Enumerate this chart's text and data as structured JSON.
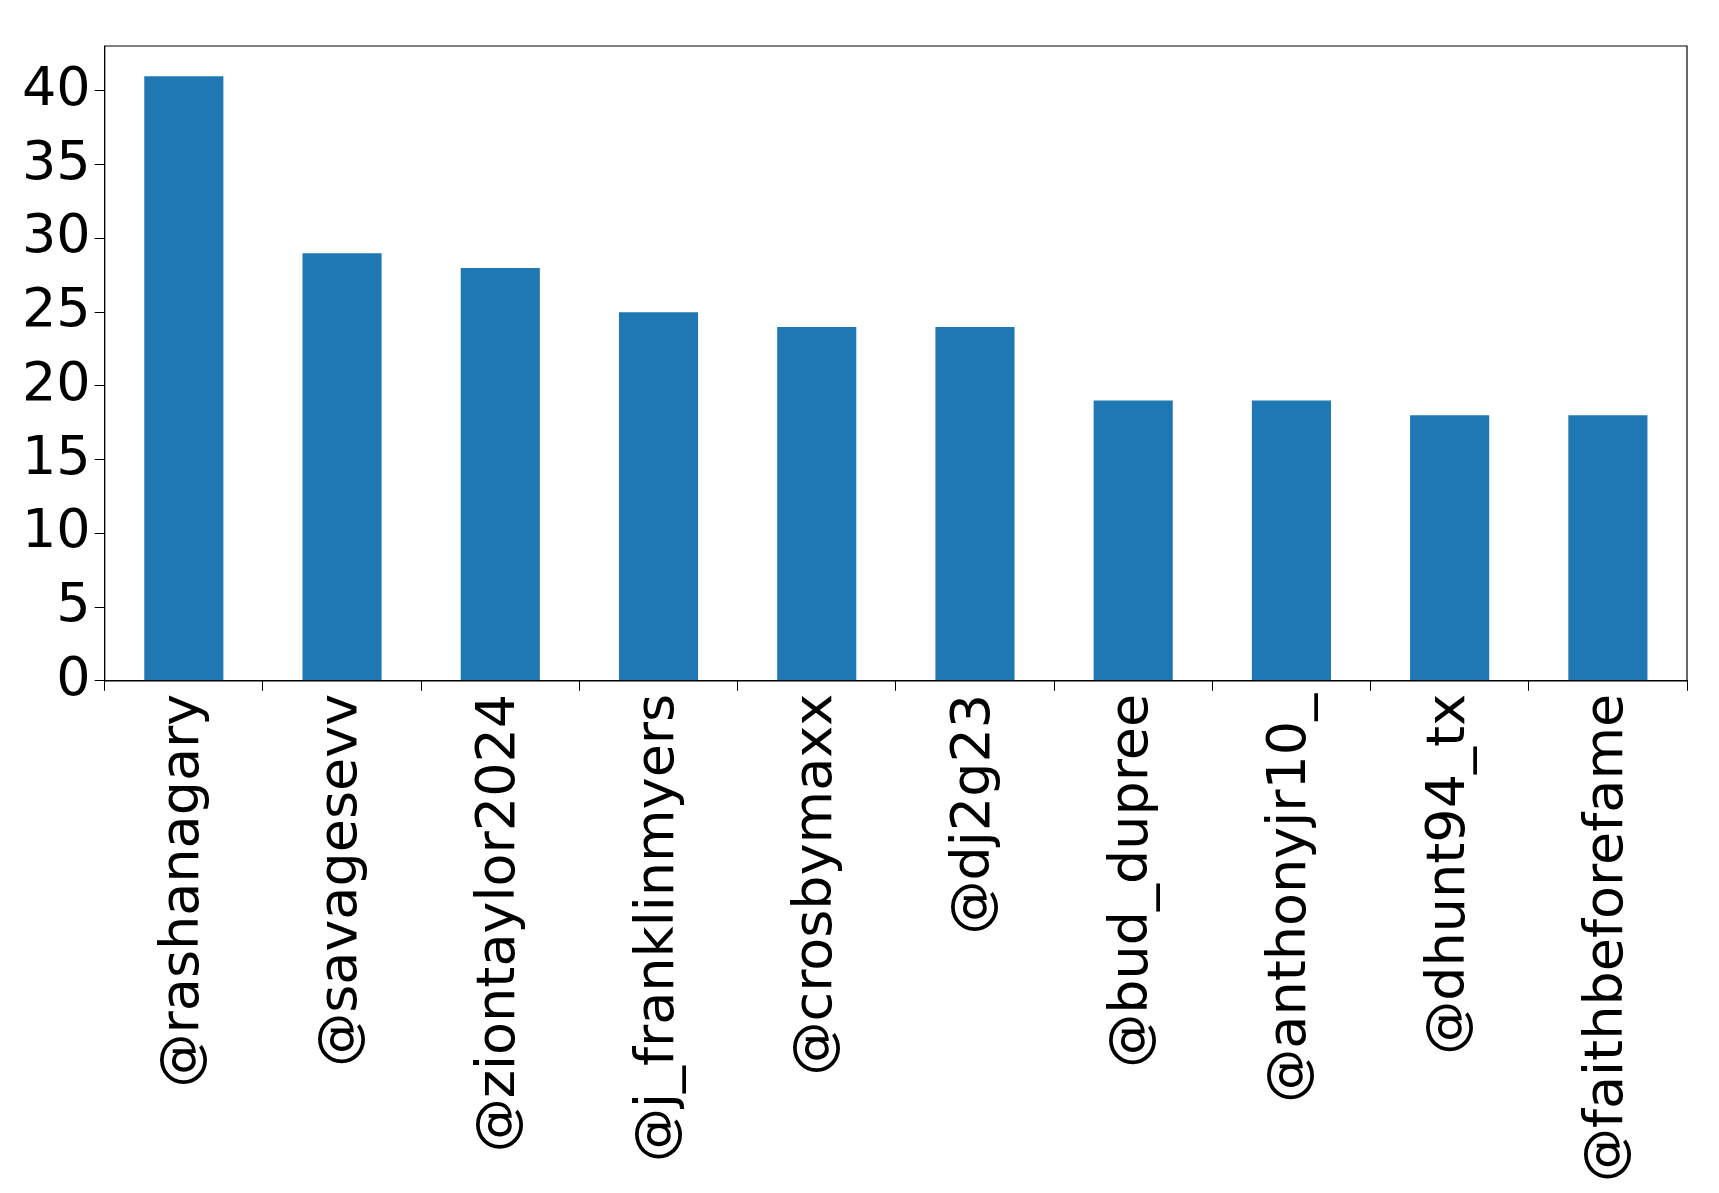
{
  "chart_data": {
    "type": "bar",
    "categories": [
      "@rashanagary",
      "@savagesevv",
      "@ziontaylor2024",
      "@j_franklinmyers",
      "@crosbymaxx",
      "@dj2g23",
      "@bud_dupree",
      "@anthonyjr10_",
      "@dhunt94_tx",
      "@faithbeforefame"
    ],
    "values": [
      41,
      29,
      28,
      25,
      24,
      24,
      19,
      19,
      18,
      18
    ],
    "color": "#1f77b4",
    "ylim": [
      0,
      43.05
    ],
    "yticks": [
      0,
      5,
      10,
      15,
      20,
      25,
      30,
      35,
      40
    ],
    "grid": false,
    "legend": false
  }
}
